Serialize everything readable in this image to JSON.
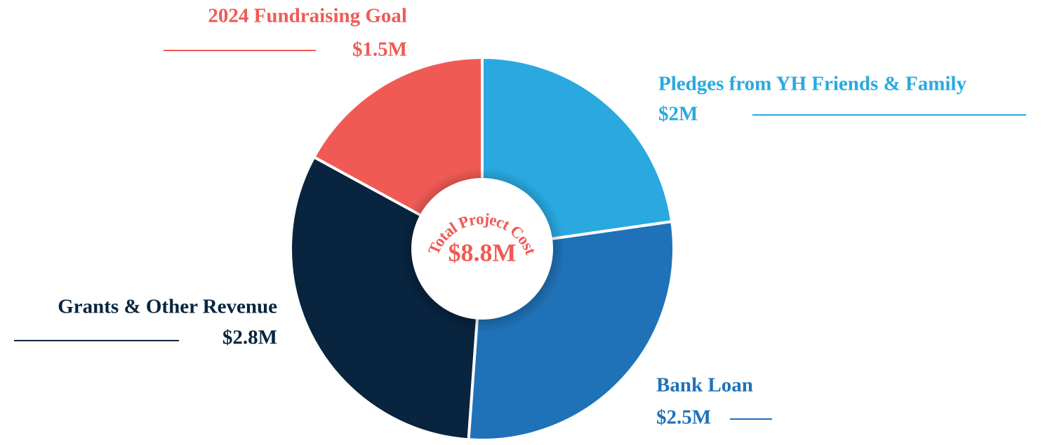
{
  "chart_data": {
    "type": "donut",
    "categories": [
      "Pledges from YH Friends & Family",
      "Bank Loan",
      "Grants & Other Revenue",
      "2024 Fundraising Goal"
    ],
    "values": [
      2,
      2.5,
      2.8,
      1.5
    ],
    "value_labels": [
      "$2M",
      "$2.5M",
      "$2.8M",
      "$1.5M"
    ],
    "colors": [
      "#29a9e0",
      "#1f72b8",
      "#08243f",
      "#f05a55"
    ],
    "center_title": "Total Project Cost",
    "center_value": "$8.8M"
  }
}
